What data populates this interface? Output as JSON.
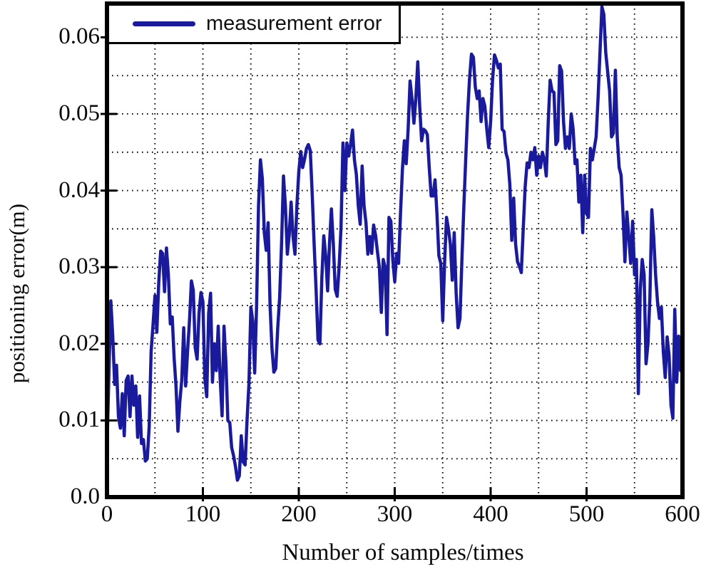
{
  "figure": {
    "background": "#ffffff",
    "border_color": "#000000",
    "legend": {
      "label": "measurement error",
      "position": "top-left",
      "line_color": "#1a1a9d"
    }
  },
  "chart_data": {
    "type": "line",
    "title": "",
    "xlabel": "Number of samples/times",
    "ylabel": "positioning error(m)",
    "xlim": [
      0,
      600
    ],
    "ylim": [
      0,
      0.0644
    ],
    "grid": {
      "style": "dotted",
      "color": "#000000",
      "x_step": 50,
      "y_step": 0.005
    },
    "legend_entries": [
      "measurement error"
    ],
    "x_ticks": {
      "values": [
        0,
        100,
        200,
        300,
        400,
        500,
        600
      ],
      "labels": [
        "0",
        "100",
        "200",
        "300",
        "400",
        "500",
        "600"
      ]
    },
    "y_ticks": {
      "values": [
        0,
        0.01,
        0.02,
        0.03,
        0.04,
        0.05,
        0.06
      ],
      "labels": [
        "0.0",
        "0.01",
        "0.02",
        "0.03",
        "0.04",
        "0.05",
        "0.06"
      ]
    },
    "series": [
      {
        "name": "measurement error",
        "color": "#1a1a9d",
        "line_width": 4.5,
        "x": [
          0,
          2,
          4,
          6,
          8,
          10,
          12,
          14,
          16,
          18,
          20,
          22,
          24,
          26,
          28,
          30,
          32,
          34,
          36,
          38,
          40,
          42,
          44,
          46,
          48,
          50,
          52,
          54,
          56,
          58,
          60,
          62,
          64,
          66,
          68,
          70,
          72,
          74,
          76,
          78,
          80,
          82,
          84,
          86,
          88,
          90,
          92,
          94,
          96,
          98,
          100,
          102,
          104,
          106,
          108,
          110,
          112,
          114,
          116,
          118,
          120,
          122,
          124,
          126,
          128,
          130,
          132,
          134,
          136,
          138,
          140,
          142,
          144,
          146,
          148,
          150,
          152,
          154,
          156,
          158,
          160,
          162,
          164,
          166,
          168,
          170,
          172,
          174,
          176,
          178,
          180,
          182,
          184,
          186,
          188,
          190,
          192,
          194,
          196,
          198,
          200,
          202,
          204,
          206,
          208,
          210,
          212,
          214,
          216,
          218,
          220,
          222,
          224,
          226,
          228,
          230,
          232,
          234,
          236,
          238,
          240,
          242,
          244,
          246,
          248,
          250,
          252,
          254,
          256,
          258,
          260,
          262,
          264,
          266,
          268,
          270,
          272,
          274,
          276,
          278,
          280,
          282,
          284,
          286,
          288,
          290,
          292,
          294,
          296,
          298,
          300,
          302,
          304,
          306,
          308,
          310,
          312,
          314,
          316,
          318,
          320,
          322,
          324,
          326,
          328,
          330,
          332,
          334,
          336,
          338,
          340,
          342,
          344,
          346,
          348,
          350,
          352,
          354,
          356,
          358,
          360,
          362,
          364,
          366,
          368,
          370,
          372,
          374,
          376,
          378,
          380,
          382,
          384,
          386,
          388,
          390,
          392,
          394,
          396,
          398,
          400,
          402,
          404,
          406,
          408,
          410,
          412,
          414,
          416,
          418,
          420,
          422,
          424,
          426,
          428,
          430,
          432,
          434,
          436,
          438,
          440,
          442,
          444,
          446,
          448,
          450,
          452,
          454,
          456,
          458,
          460,
          462,
          464,
          466,
          468,
          470,
          472,
          474,
          476,
          478,
          480,
          482,
          484,
          486,
          488,
          490,
          492,
          494,
          496,
          498,
          500,
          502,
          504,
          506,
          508,
          510,
          512,
          514,
          516,
          518,
          520,
          522,
          524,
          526,
          528,
          530,
          532,
          534,
          536,
          538,
          540,
          542,
          544,
          546,
          548,
          550,
          552,
          554,
          556,
          558,
          560,
          562,
          564,
          566,
          568,
          570,
          572,
          574,
          576,
          578,
          580,
          582,
          584,
          586,
          588,
          590,
          592,
          594,
          596,
          598,
          600
        ],
        "y": [
          0.0063,
          0.016,
          0.0256,
          0.021,
          0.0147,
          0.0172,
          0.0105,
          0.009,
          0.0135,
          0.008,
          0.0152,
          0.0158,
          0.0105,
          0.0158,
          0.012,
          0.0145,
          0.0078,
          0.0132,
          0.007,
          0.0075,
          0.0047,
          0.005,
          0.0092,
          0.019,
          0.0225,
          0.0263,
          0.0215,
          0.028,
          0.0321,
          0.0318,
          0.0268,
          0.0325,
          0.029,
          0.0226,
          0.0235,
          0.0181,
          0.0145,
          0.0086,
          0.0125,
          0.0153,
          0.0221,
          0.0145,
          0.019,
          0.023,
          0.0282,
          0.027,
          0.0195,
          0.018,
          0.024,
          0.0267,
          0.0255,
          0.0155,
          0.0131,
          0.024,
          0.0266,
          0.015,
          0.02,
          0.0165,
          0.0223,
          0.0155,
          0.0106,
          0.0223,
          0.0175,
          0.01,
          0.0097,
          0.0065,
          0.0054,
          0.004,
          0.0022,
          0.0028,
          0.008,
          0.0046,
          0.0042,
          0.01,
          0.0148,
          0.0248,
          0.023,
          0.0162,
          0.025,
          0.038,
          0.044,
          0.0415,
          0.0345,
          0.0322,
          0.0358,
          0.025,
          0.0195,
          0.0163,
          0.0168,
          0.022,
          0.026,
          0.033,
          0.0419,
          0.038,
          0.0317,
          0.0342,
          0.0385,
          0.034,
          0.0317,
          0.038,
          0.0425,
          0.0451,
          0.043,
          0.0441,
          0.0455,
          0.046,
          0.0452,
          0.0395,
          0.033,
          0.0271,
          0.0205,
          0.02,
          0.0286,
          0.0341,
          0.0315,
          0.0269,
          0.033,
          0.0376,
          0.033,
          0.0271,
          0.0262,
          0.03,
          0.0352,
          0.0462,
          0.04,
          0.0462,
          0.0445,
          0.046,
          0.0479,
          0.044,
          0.0421,
          0.038,
          0.0356,
          0.0432,
          0.038,
          0.0358,
          0.0317,
          0.034,
          0.0318,
          0.0355,
          0.0342,
          0.032,
          0.03,
          0.0241,
          0.031,
          0.03,
          0.0212,
          0.0365,
          0.036,
          0.031,
          0.0281,
          0.0318,
          0.0305,
          0.037,
          0.0428,
          0.0465,
          0.0435,
          0.048,
          0.0543,
          0.052,
          0.0488,
          0.052,
          0.0568,
          0.051,
          0.0465,
          0.048,
          0.0478,
          0.0473,
          0.043,
          0.0393,
          0.0393,
          0.0414,
          0.037,
          0.0315,
          0.0305,
          0.023,
          0.0305,
          0.0365,
          0.035,
          0.033,
          0.0283,
          0.0345,
          0.0267,
          0.0221,
          0.0233,
          0.031,
          0.0376,
          0.044,
          0.05,
          0.0546,
          0.0578,
          0.0574,
          0.0535,
          0.052,
          0.053,
          0.049,
          0.052,
          0.051,
          0.048,
          0.0456,
          0.049,
          0.0545,
          0.0577,
          0.057,
          0.056,
          0.0565,
          0.048,
          0.0477,
          0.0449,
          0.044,
          0.0408,
          0.0335,
          0.039,
          0.033,
          0.0307,
          0.0301,
          0.0293,
          0.035,
          0.0405,
          0.0436,
          0.043,
          0.045,
          0.044,
          0.0456,
          0.042,
          0.0445,
          0.043,
          0.045,
          0.044,
          0.0419,
          0.0488,
          0.0544,
          0.053,
          0.0528,
          0.046,
          0.0465,
          0.0563,
          0.0556,
          0.049,
          0.0455,
          0.047,
          0.0455,
          0.05,
          0.048,
          0.0435,
          0.044,
          0.0385,
          0.042,
          0.0345,
          0.042,
          0.037,
          0.0365,
          0.0455,
          0.044,
          0.0455,
          0.047,
          0.052,
          0.058,
          0.064,
          0.063,
          0.058,
          0.0555,
          0.053,
          0.047,
          0.0475,
          0.0557,
          0.047,
          0.043,
          0.042,
          0.037,
          0.0307,
          0.0372,
          0.034,
          0.0305,
          0.036,
          0.029,
          0.031,
          0.0135,
          0.027,
          0.031,
          0.029,
          0.0174,
          0.02,
          0.026,
          0.0375,
          0.034,
          0.029,
          0.0255,
          0.0233,
          0.0248,
          0.019,
          0.0156,
          0.0209,
          0.0185,
          0.012,
          0.0103,
          0.0245,
          0.015,
          0.021,
          0.0165,
          0.019
        ]
      }
    ]
  }
}
